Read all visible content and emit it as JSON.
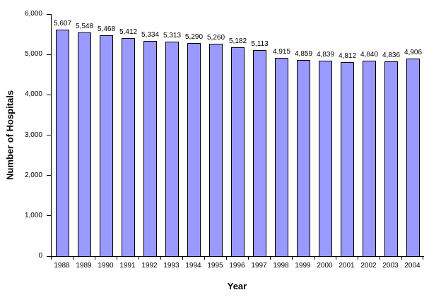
{
  "chart_data": {
    "type": "bar",
    "title": "",
    "xlabel": "Year",
    "ylabel": "Number of Hospitals",
    "categories": [
      "1988",
      "1989",
      "1990",
      "1991",
      "1992",
      "1993",
      "1994",
      "1995",
      "1996",
      "1997",
      "1998",
      "1999",
      "2000",
      "2001",
      "2002",
      "2003",
      "2004"
    ],
    "values": [
      5607,
      5548,
      5468,
      5412,
      5334,
      5313,
      5290,
      5260,
      5182,
      5113,
      4915,
      4859,
      4839,
      4812,
      4840,
      4836,
      4906
    ],
    "bar_labels": [
      "5,607",
      "5,548",
      "5,468",
      "5,412",
      "5,334",
      "5,313",
      "5,290",
      "5,260",
      "5,182",
      "5,113",
      "4,915",
      "4,859",
      "4,839",
      "4,812",
      "4,840",
      "4,836",
      "4,906"
    ],
    "ylim": [
      0,
      6000
    ],
    "ytick_interval": 1000,
    "ytick_labels": [
      "0",
      "1,000",
      "2,000",
      "3,000",
      "4,000",
      "5,000",
      "6,000"
    ],
    "grid": false,
    "legend": "none",
    "bar_fill_color": "#9999FF",
    "bar_border_color": "#000000",
    "axis_color": "#000000",
    "background_color": "#FFFFFF"
  }
}
